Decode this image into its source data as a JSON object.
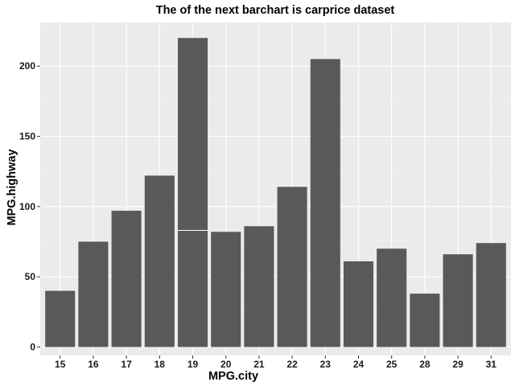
{
  "chart_data": {
    "type": "bar",
    "title": "The of the next barchart is carprice dataset",
    "xlabel": "MPG.city",
    "ylabel": "MPG.highway",
    "categories": [
      "15",
      "16",
      "17",
      "18",
      "19",
      "20",
      "21",
      "22",
      "23",
      "24",
      "25",
      "28",
      "29",
      "31"
    ],
    "stacks": [
      [
        40
      ],
      [
        75
      ],
      [
        97
      ],
      [
        122
      ],
      [
        83,
        137
      ],
      [
        82
      ],
      [
        86
      ],
      [
        114
      ],
      [
        205
      ],
      [
        61
      ],
      [
        70
      ],
      [
        38
      ],
      [
        66
      ],
      [
        74
      ]
    ],
    "values": [
      40,
      75,
      97,
      122,
      220,
      82,
      86,
      114,
      205,
      61,
      70,
      38,
      66,
      74
    ],
    "ylim": [
      -6,
      231
    ],
    "yticks": [
      0,
      50,
      100,
      150,
      200
    ],
    "grid": true,
    "colors": {
      "bar": "#595959",
      "panel": "#ebebeb",
      "grid_major": "#ffffff",
      "segment_divider": "#ffffff"
    }
  }
}
